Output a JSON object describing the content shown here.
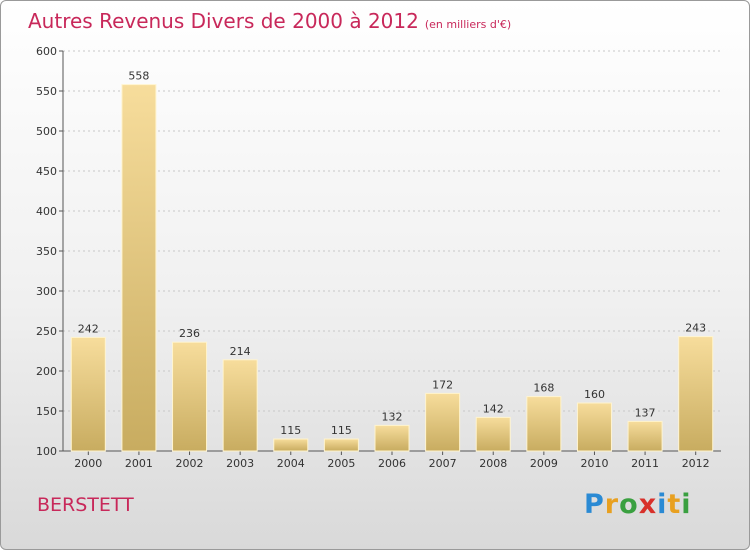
{
  "title": "Autres Revenus Divers de 2000 à 2012",
  "subtitle": "(en milliers d'€)",
  "commune": "BERSTETT",
  "logo": {
    "letters": [
      "P",
      "r",
      "o",
      "x",
      "i",
      "t",
      "i"
    ],
    "colors": [
      "#2a8ad4",
      "#e8a020",
      "#3aa040",
      "#d8302a",
      "#2a8ad4",
      "#e8a020",
      "#3aa040"
    ]
  },
  "colors": {
    "accent": "#c8285a",
    "bar_light": "#f7dd9c",
    "bar_dark": "#c8ac60"
  },
  "chart_data": {
    "type": "bar",
    "categories": [
      "2000",
      "2001",
      "2002",
      "2003",
      "2004",
      "2005",
      "2006",
      "2007",
      "2008",
      "2009",
      "2010",
      "2011",
      "2012"
    ],
    "values": [
      242,
      558,
      236,
      214,
      115,
      115,
      132,
      172,
      142,
      168,
      160,
      137,
      243
    ],
    "ylim": [
      100,
      600
    ],
    "yticks": [
      100,
      150,
      200,
      250,
      300,
      350,
      400,
      450,
      500,
      550,
      600
    ],
    "grid": true
  }
}
